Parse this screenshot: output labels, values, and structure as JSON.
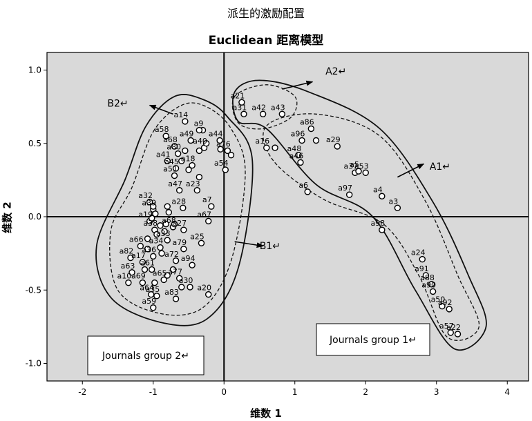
{
  "chart_data": {
    "type": "scatter",
    "title": "派生的激励配置",
    "subtitle": "Euclidean 距离模型",
    "xlabel": "维数 1",
    "ylabel": "维数 2",
    "xlim": [
      -2.5,
      4.3
    ],
    "ylim": [
      -1.12,
      1.12
    ],
    "xticks": [
      -2,
      -1,
      0,
      1,
      2,
      3,
      4
    ],
    "yticks": [
      -1.0,
      -0.5,
      0.0,
      0.5,
      1.0
    ],
    "ytick_labels": [
      "-1.0",
      "-0.5",
      "0.0",
      "0.5",
      "1.0"
    ],
    "grid": false,
    "reference_lines": {
      "x": 0,
      "y": 0
    },
    "points": [
      {
        "label": "a21",
        "x": 0.25,
        "y": 0.78
      },
      {
        "label": "a31",
        "x": 0.28,
        "y": 0.7
      },
      {
        "label": "a42",
        "x": 0.55,
        "y": 0.7
      },
      {
        "label": "a43",
        "x": 0.82,
        "y": 0.7
      },
      {
        "label": "a86",
        "x": 1.23,
        "y": 0.6
      },
      {
        "label": "a29",
        "x": 1.6,
        "y": 0.48
      },
      {
        "label": "a16",
        "x": 0.6,
        "y": 0.47
      },
      {
        "label": "a96",
        "x": 1.1,
        "y": 0.52
      },
      {
        "label": "a48",
        "x": 1.05,
        "y": 0.42
      },
      {
        "label": "a46",
        "x": 1.08,
        "y": 0.37
      },
      {
        "label": "a37",
        "x": 1.85,
        "y": 0.3
      },
      {
        "label": "a5",
        "x": 1.9,
        "y": 0.31
      },
      {
        "label": "a53",
        "x": 2.0,
        "y": 0.3
      },
      {
        "label": "a97",
        "x": 1.77,
        "y": 0.15
      },
      {
        "label": "a4",
        "x": 2.23,
        "y": 0.14
      },
      {
        "label": "a6",
        "x": 1.18,
        "y": 0.17
      },
      {
        "label": "a3",
        "x": 2.45,
        "y": 0.06
      },
      {
        "label": "a98",
        "x": 2.23,
        "y": -0.09
      },
      {
        "label": "a24",
        "x": 2.8,
        "y": -0.29
      },
      {
        "label": "a91",
        "x": 2.85,
        "y": -0.4
      },
      {
        "label": "a88",
        "x": 2.93,
        "y": -0.46
      },
      {
        "label": "a90",
        "x": 2.95,
        "y": -0.51
      },
      {
        "label": "a50",
        "x": 3.08,
        "y": -0.61
      },
      {
        "label": "a92",
        "x": 3.18,
        "y": -0.63
      },
      {
        "label": "a57",
        "x": 3.2,
        "y": -0.79
      },
      {
        "label": "a22",
        "x": 3.3,
        "y": -0.8
      },
      {
        "label": "a14",
        "x": -0.55,
        "y": 0.65
      },
      {
        "label": "a9",
        "x": -0.3,
        "y": 0.59
      },
      {
        "label": "a58",
        "x": -0.82,
        "y": 0.55
      },
      {
        "label": "a49",
        "x": -0.47,
        "y": 0.52
      },
      {
        "label": "a44",
        "x": -0.06,
        "y": 0.52
      },
      {
        "label": "a68",
        "x": -0.7,
        "y": 0.48
      },
      {
        "label": "a40",
        "x": -0.28,
        "y": 0.47
      },
      {
        "label": "a76",
        "x": 0.05,
        "y": 0.45
      },
      {
        "label": "a80",
        "x": -0.65,
        "y": 0.43
      },
      {
        "label": "a41",
        "x": -0.8,
        "y": 0.38
      },
      {
        "label": "a45",
        "x": -0.68,
        "y": 0.33
      },
      {
        "label": "a18",
        "x": -0.45,
        "y": 0.35
      },
      {
        "label": "a51",
        "x": -0.7,
        "y": 0.28
      },
      {
        "label": "a54",
        "x": 0.02,
        "y": 0.32
      },
      {
        "label": "a47",
        "x": -0.63,
        "y": 0.18
      },
      {
        "label": "a23",
        "x": -0.38,
        "y": 0.18
      },
      {
        "label": "a32",
        "x": -1.05,
        "y": 0.1
      },
      {
        "label": "a28",
        "x": -0.58,
        "y": 0.06
      },
      {
        "label": "a7",
        "x": -0.18,
        "y": 0.07
      },
      {
        "label": "a39",
        "x": -1.0,
        "y": 0.05
      },
      {
        "label": "a19",
        "x": -1.05,
        "y": -0.03
      },
      {
        "label": "a67",
        "x": -0.22,
        "y": -0.03
      },
      {
        "label": "a38",
        "x": -0.98,
        "y": -0.09
      },
      {
        "label": "a68",
        "x": -0.72,
        "y": -0.07
      },
      {
        "label": "a27",
        "x": -0.57,
        "y": -0.09
      },
      {
        "label": "a66",
        "x": -1.18,
        "y": -0.2
      },
      {
        "label": "a33",
        "x": -0.8,
        "y": -0.16
      },
      {
        "label": "a79",
        "x": -0.57,
        "y": -0.22
      },
      {
        "label": "a25",
        "x": -0.32,
        "y": -0.18
      },
      {
        "label": "a34",
        "x": -0.9,
        "y": -0.21
      },
      {
        "label": "a82",
        "x": -1.32,
        "y": -0.28
      },
      {
        "label": "a17",
        "x": -1.15,
        "y": -0.31
      },
      {
        "label": "a36",
        "x": -1.0,
        "y": -0.27
      },
      {
        "label": "a72",
        "x": -0.68,
        "y": -0.3
      },
      {
        "label": "a94",
        "x": -0.45,
        "y": -0.33
      },
      {
        "label": "a63",
        "x": -1.3,
        "y": -0.38
      },
      {
        "label": "a61",
        "x": -1.02,
        "y": -0.36
      },
      {
        "label": "a77",
        "x": -0.63,
        "y": -0.42
      },
      {
        "label": "a65",
        "x": -0.85,
        "y": -0.43
      },
      {
        "label": "a10",
        "x": -1.35,
        "y": -0.45
      },
      {
        "label": "a69",
        "x": -1.15,
        "y": -0.45
      },
      {
        "label": "a30",
        "x": -0.48,
        "y": -0.48
      },
      {
        "label": "a20",
        "x": -0.22,
        "y": -0.53
      },
      {
        "label": "a64",
        "x": -1.03,
        "y": -0.53
      },
      {
        "label": "a35",
        "x": -0.95,
        "y": -0.54
      },
      {
        "label": "a83",
        "x": -0.68,
        "y": -0.56
      },
      {
        "label": "a59",
        "x": -1.0,
        "y": -0.62
      }
    ],
    "extra_markers": [
      {
        "x": -1.0,
        "y": 0.07
      },
      {
        "x": -0.97,
        "y": 0.02
      },
      {
        "x": -1.02,
        "y": -0.01
      },
      {
        "x": -0.8,
        "y": 0.07
      },
      {
        "x": -0.78,
        "y": 0.03
      },
      {
        "x": -0.82,
        "y": -0.05
      },
      {
        "x": -0.95,
        "y": -0.12
      },
      {
        "x": -1.08,
        "y": -0.15
      },
      {
        "x": -0.88,
        "y": -0.25
      },
      {
        "x": -1.08,
        "y": -0.22
      },
      {
        "x": -1.12,
        "y": -0.36
      },
      {
        "x": -0.98,
        "y": -0.45
      },
      {
        "x": -0.72,
        "y": -0.36
      },
      {
        "x": -0.6,
        "y": -0.48
      },
      {
        "x": -0.35,
        "y": 0.59
      },
      {
        "x": -0.35,
        "y": 0.45
      },
      {
        "x": -0.55,
        "y": 0.45
      },
      {
        "x": -0.6,
        "y": 0.38
      },
      {
        "x": -0.05,
        "y": 0.46
      },
      {
        "x": 0.1,
        "y": 0.42
      },
      {
        "x": -0.5,
        "y": 0.32
      },
      {
        "x": -0.35,
        "y": 0.27
      },
      {
        "x": 0.72,
        "y": 0.47
      },
      {
        "x": 1.3,
        "y": 0.52
      },
      {
        "x": -0.25,
        "y": 0.5
      },
      {
        "x": -0.9,
        "y": -0.06
      },
      {
        "x": -0.84,
        "y": -0.1
      },
      {
        "x": -0.8,
        "y": -0.4
      },
      {
        "x": -0.7,
        "y": -0.05
      }
    ],
    "annotations": [
      {
        "label": "A2",
        "x": 1.58,
        "y": 0.97
      },
      {
        "label": "A1",
        "x": 3.05,
        "y": 0.32
      },
      {
        "label": "B2",
        "x": -1.5,
        "y": 0.75
      },
      {
        "label": "B1",
        "x": 0.65,
        "y": -0.22
      }
    ],
    "arrows": [
      {
        "name": "A2",
        "from": [
          0.82,
          0.87
        ],
        "to": [
          1.25,
          0.92
        ]
      },
      {
        "name": "A1",
        "from": [
          2.45,
          0.27
        ],
        "to": [
          2.82,
          0.36
        ]
      },
      {
        "name": "B2",
        "from": [
          -0.72,
          0.7
        ],
        "to": [
          -1.05,
          0.76
        ]
      },
      {
        "name": "B1",
        "from": [
          0.15,
          -0.17
        ],
        "to": [
          0.55,
          -0.2
        ]
      }
    ],
    "group_boxes": [
      {
        "label": "Journals group 2"
      },
      {
        "label": "Journals group 1"
      }
    ]
  }
}
